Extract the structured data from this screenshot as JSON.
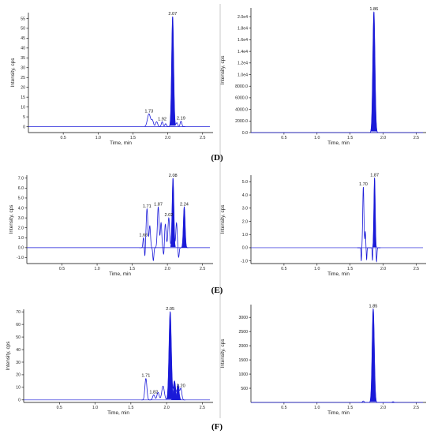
{
  "panel_labels": [
    "(D)",
    "(E)",
    "(F)"
  ],
  "colors": {
    "trace": "#1a1ad8",
    "axis": "#000000",
    "baseline": "#1a1ad8",
    "divider": "#bbbbbb"
  },
  "chart_data": [
    {
      "type": "line",
      "row": "D",
      "side": "left",
      "xlabel": "Time, min",
      "ylabel": "Intensity, cps",
      "xlim": [
        0,
        2.65
      ],
      "ylim": [
        -3,
        58
      ],
      "xticks": [
        "0.5",
        "1.0",
        "1.5",
        "2.0",
        "2.5"
      ],
      "yticks": [
        "0",
        "5",
        "10",
        "15",
        "20",
        "25",
        "30",
        "35",
        "40",
        "45",
        "50",
        "55"
      ],
      "baseline": 0,
      "peaks": [
        {
          "rt": 1.73,
          "h": 6.5,
          "w": 0.022,
          "label": "1.73"
        },
        {
          "rt": 1.78,
          "h": 3,
          "w": 0.015
        },
        {
          "rt": 1.84,
          "h": 2.5,
          "w": 0.015
        },
        {
          "rt": 1.92,
          "h": 2.5,
          "w": 0.012,
          "label": "1.92"
        },
        {
          "rt": 1.97,
          "h": 1.5,
          "w": 0.012
        },
        {
          "rt": 2.07,
          "h": 56,
          "w": 0.014,
          "label": "2.07",
          "filled": true
        },
        {
          "rt": 2.13,
          "h": 2,
          "w": 0.012
        },
        {
          "rt": 2.19,
          "h": 2.8,
          "w": 0.012,
          "label": "2.19"
        }
      ]
    },
    {
      "type": "line",
      "row": "D",
      "side": "right",
      "xlabel": "Time, min",
      "ylabel": "Intensity, cps",
      "xlim": [
        0,
        2.65
      ],
      "ylim": [
        0,
        21500
      ],
      "xticks": [
        "0.5",
        "1.0",
        "1.5",
        "2.0",
        "2.5"
      ],
      "yticks": [
        "0.0",
        "2000.0",
        "4000.0",
        "6000.0",
        "8000.0",
        "1.0e4",
        "1.2e4",
        "1.4e4",
        "1.6e4",
        "1.8e4",
        "2.0e4"
      ],
      "baseline": 0,
      "peaks": [
        {
          "rt": 1.86,
          "h": 20800,
          "w": 0.016,
          "label": "1.86",
          "filled": true
        }
      ]
    },
    {
      "type": "line",
      "row": "E",
      "side": "left",
      "xlabel": "Time, min",
      "ylabel": "Intensity, cps",
      "xlim": [
        0,
        2.65
      ],
      "ylim": [
        -1.6,
        7.3
      ],
      "xticks": [
        "0.5",
        "1.0",
        "1.5",
        "2.0",
        "2.5"
      ],
      "yticks": [
        "-1.0",
        "0.0",
        "1.0",
        "2.0",
        "3.0",
        "4.0",
        "5.0",
        "6.0",
        "7.0"
      ],
      "baseline": 0,
      "peaks": [
        {
          "rt": 1.66,
          "h": 1.0,
          "w": 0.008,
          "label": "1.66"
        },
        {
          "rt": 1.71,
          "h": 3.9,
          "w": 0.012,
          "label": "1.71"
        },
        {
          "rt": 1.75,
          "h": 2.2,
          "w": 0.01
        },
        {
          "rt": 1.87,
          "h": 4.1,
          "w": 0.012,
          "label": "1.87"
        },
        {
          "rt": 1.91,
          "h": 2.5,
          "w": 0.01
        },
        {
          "rt": 1.97,
          "h": 2.4,
          "w": 0.012
        },
        {
          "rt": 2.02,
          "h": 3.0,
          "w": 0.012,
          "label": "2.02"
        },
        {
          "rt": 2.08,
          "h": 7.0,
          "w": 0.012,
          "label": "2.08",
          "filled": true
        },
        {
          "rt": 2.13,
          "h": 2.5,
          "w": 0.01
        },
        {
          "rt": 2.24,
          "h": 4.1,
          "w": 0.012,
          "label": "2.24",
          "filled": true
        }
      ],
      "dips": [
        {
          "rt": 1.68,
          "d": -1.0,
          "w": 0.006
        },
        {
          "rt": 1.8,
          "d": -1.3,
          "w": 0.008
        },
        {
          "rt": 1.95,
          "d": -1.1,
          "w": 0.008
        },
        {
          "rt": 2.16,
          "d": -1.0,
          "w": 0.008
        }
      ]
    },
    {
      "type": "line",
      "row": "E",
      "side": "right",
      "xlabel": "Time, min",
      "ylabel": "Intensity, cps",
      "xlim": [
        0,
        2.65
      ],
      "ylim": [
        -1.2,
        5.5
      ],
      "xticks": [
        "0.5",
        "1.0",
        "1.5",
        "2.0",
        "2.5"
      ],
      "yticks": [
        "-1.0",
        "0.0",
        "1.0",
        "2.0",
        "3.0",
        "4.0",
        "5.0"
      ],
      "baseline": 0,
      "peaks": [
        {
          "rt": 1.7,
          "h": 4.6,
          "w": 0.009,
          "label": "1.70"
        },
        {
          "rt": 1.73,
          "h": 1.2,
          "w": 0.006
        },
        {
          "rt": 1.87,
          "h": 5.3,
          "w": 0.01,
          "label": "1.87",
          "filled": true
        }
      ],
      "dips": [
        {
          "rt": 1.67,
          "d": -1.0,
          "w": 0.005
        },
        {
          "rt": 1.75,
          "d": -0.9,
          "w": 0.005
        },
        {
          "rt": 1.84,
          "d": -1.0,
          "w": 0.005
        },
        {
          "rt": 1.9,
          "d": -1.1,
          "w": 0.006
        }
      ]
    },
    {
      "type": "line",
      "row": "F",
      "side": "left",
      "xlabel": "Time, min",
      "ylabel": "Intensity, cps",
      "xlim": [
        0,
        2.65
      ],
      "ylim": [
        -2,
        72
      ],
      "xticks": [
        "0.5",
        "1.0",
        "1.5",
        "2.0",
        "2.5"
      ],
      "yticks": [
        "0",
        "10",
        "20",
        "30",
        "40",
        "50",
        "60",
        "70"
      ],
      "baseline": 0,
      "peaks": [
        {
          "rt": 1.71,
          "h": 17,
          "w": 0.014,
          "label": "1.71"
        },
        {
          "rt": 1.82,
          "h": 4,
          "w": 0.015,
          "label": "1.82"
        },
        {
          "rt": 1.88,
          "h": 6,
          "w": 0.015
        },
        {
          "rt": 1.95,
          "h": 11,
          "w": 0.018
        },
        {
          "rt": 2.05,
          "h": 70,
          "w": 0.016,
          "label": "2.05",
          "filled": true
        },
        {
          "rt": 2.11,
          "h": 15,
          "w": 0.015,
          "filled": true
        },
        {
          "rt": 2.16,
          "h": 12,
          "w": 0.015,
          "filled": true
        },
        {
          "rt": 2.2,
          "h": 9,
          "w": 0.013,
          "label": "2.20"
        }
      ]
    },
    {
      "type": "line",
      "row": "F",
      "side": "right",
      "xlabel": "Time, min",
      "ylabel": "Intensity, cps",
      "xlim": [
        0,
        2.65
      ],
      "ylim": [
        0,
        3450
      ],
      "xticks": [
        "0.5",
        "1.0",
        "1.5",
        "2.0",
        "2.5"
      ],
      "yticks": [
        "500",
        "1000",
        "1500",
        "2000",
        "2500",
        "3000"
      ],
      "baseline": 0,
      "peaks": [
        {
          "rt": 1.7,
          "h": 50,
          "w": 0.012
        },
        {
          "rt": 1.85,
          "h": 3300,
          "w": 0.016,
          "label": "1.85",
          "filled": true
        },
        {
          "rt": 2.15,
          "h": 25,
          "w": 0.012
        }
      ]
    }
  ]
}
